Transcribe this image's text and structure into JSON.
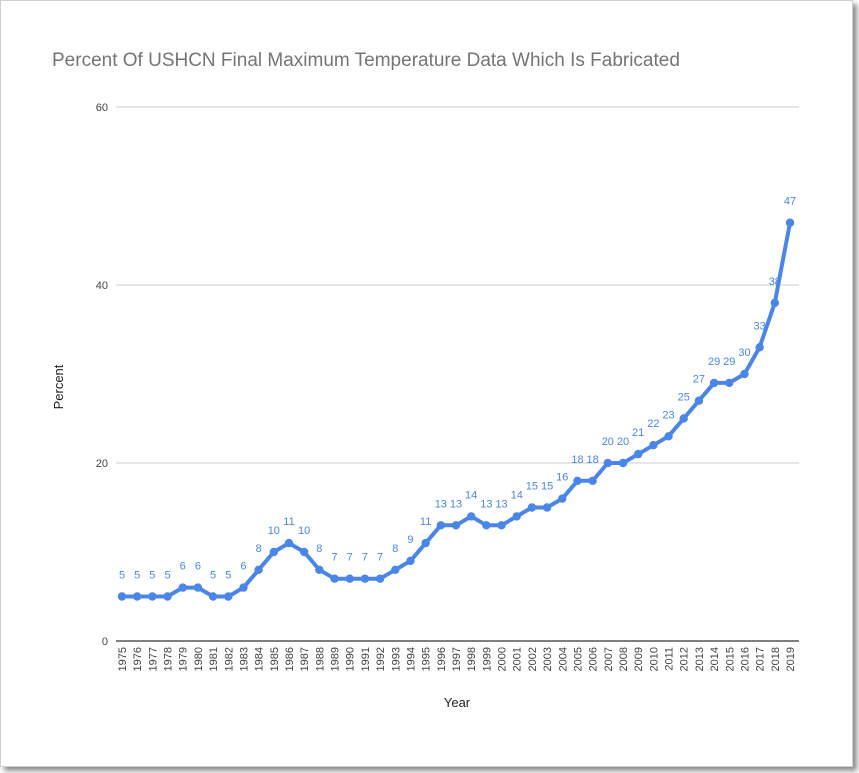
{
  "chart_data": {
    "type": "line",
    "title": "Percent Of USHCN Final Maximum Temperature Data Which Is Fabricated",
    "xlabel": "Year",
    "ylabel": "Percent",
    "ylim": [
      0,
      60
    ],
    "yticks": [
      "0",
      "20",
      "40",
      "60"
    ],
    "grid": true,
    "legend": "none",
    "color": "#4a86e8",
    "x": [
      "1975",
      "1976",
      "1977",
      "1978",
      "1979",
      "1980",
      "1981",
      "1982",
      "1983",
      "1984",
      "1985",
      "1986",
      "1987",
      "1988",
      "1989",
      "1990",
      "1991",
      "1992",
      "1993",
      "1994",
      "1995",
      "1996",
      "1997",
      "1998",
      "1999",
      "2000",
      "2001",
      "2002",
      "2003",
      "2004",
      "2005",
      "2006",
      "2007",
      "2008",
      "2009",
      "2010",
      "2011",
      "2012",
      "2013",
      "2014",
      "2015",
      "2016",
      "2017",
      "2018",
      "2019"
    ],
    "series": [
      {
        "values": [
          5,
          5,
          5,
          5,
          6,
          6,
          5,
          5,
          6,
          8,
          10,
          11,
          10,
          8,
          7,
          7,
          7,
          7,
          8,
          9,
          11,
          13,
          13,
          14,
          13,
          13,
          14,
          15,
          15,
          16,
          18,
          18,
          20,
          20,
          21,
          22,
          23,
          25,
          27,
          29,
          29,
          30,
          33,
          38,
          47
        ]
      }
    ]
  }
}
